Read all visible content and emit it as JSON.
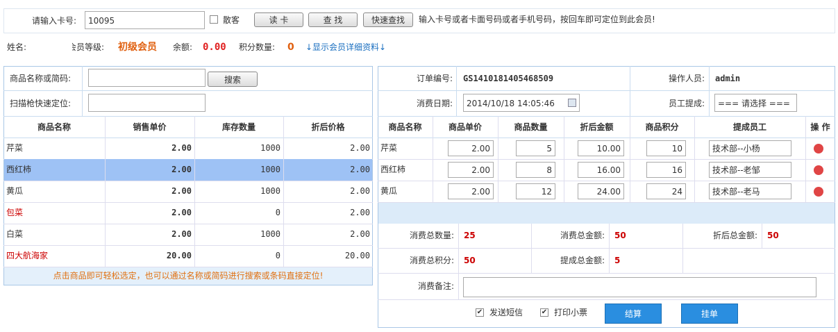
{
  "card_bar": {
    "label": "请输入卡号:",
    "card_no": "10095",
    "walk_in": "散客",
    "buttons": [
      "读 卡",
      "查 找",
      "快速查找"
    ],
    "hint": "输入卡号或者卡面号码或者手机号码，按回车即可定位到此会员!"
  },
  "member": {
    "name_label": "姓名:",
    "level_label": "会员等级:",
    "level": "初级会员",
    "balance_label": "余额:",
    "balance": "0.00",
    "points_label": "积分数量:",
    "points": "0",
    "details_link": "↓显示会员详细资料↓"
  },
  "product_search": {
    "name_label": "商品名称或简码:",
    "search_button": "搜索",
    "scan_label": "扫描枪快速定位:"
  },
  "product_table": {
    "columns": [
      "商品名称",
      "销售单价",
      "库存数量",
      "折后价格"
    ],
    "rows": [
      [
        "芹菜",
        "2.00",
        "1000",
        "2.00"
      ],
      [
        "西红柿",
        "2.00",
        "1000",
        "2.00"
      ],
      [
        "黄瓜",
        "2.00",
        "1000",
        "2.00"
      ],
      [
        "包菜",
        "2.00",
        "0",
        "2.00"
      ],
      [
        "白菜",
        "2.00",
        "1000",
        "2.00"
      ],
      [
        "四大航海家",
        "20.00",
        "0",
        "20.00"
      ]
    ],
    "tip": "点击商品即可轻松选定，也可以通过名称或简码进行搜索或条码直接定位!"
  },
  "order": {
    "number_label": "订单编号:",
    "number": "GS1410181405468509",
    "operator_label": "操作人员:",
    "operator": "admin",
    "date_label": "消费日期:",
    "date": "2014/10/18 14:05:46",
    "commission_label": "员工提成:",
    "commission_select": "=== 请选择 ==="
  },
  "order_table": {
    "columns": [
      "商品名称",
      "商品单价",
      "商品数量",
      "折后金额",
      "商品积分",
      "提成员工",
      "操 作"
    ],
    "rows": [
      [
        "芹菜",
        "2.00",
        "5",
        "10.00",
        "10",
        "技术部--小杨"
      ],
      [
        "西红柿",
        "2.00",
        "8",
        "16.00",
        "16",
        "技术部--老邹"
      ],
      [
        "黄瓜",
        "2.00",
        "12",
        "24.00",
        "24",
        "技术部--老马"
      ]
    ]
  },
  "summary": {
    "total_qty_label": "消费总数量:",
    "total_qty": "25",
    "total_amount_label": "消费总金额:",
    "total_amount": "50",
    "discount_total_label": "折后总金额:",
    "discount_total": "50",
    "total_points_label": "消费总积分:",
    "total_points": "50",
    "commission_total_label": "提成总金额:",
    "commission_total": "5",
    "remark_label": "消费备注:"
  },
  "actions": {
    "sms": "发送短信",
    "print": "打印小票",
    "settle": "结算",
    "hold": "挂单"
  }
}
